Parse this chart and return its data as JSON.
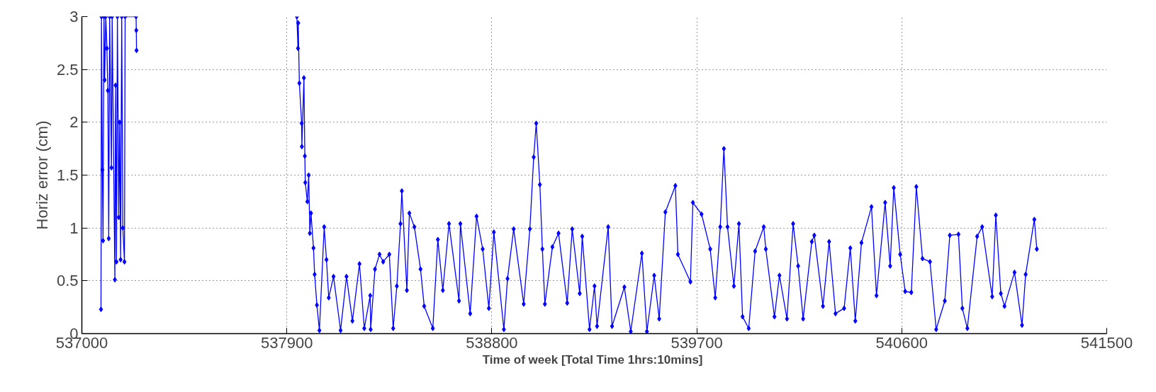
{
  "chart_data": {
    "type": "line",
    "xlabel": "Time of week  [Total Time 1hrs:10mins]",
    "ylabel": "Horiz error (cm)",
    "xlim": [
      537000,
      541500
    ],
    "xticks": [
      537000,
      537900,
      538800,
      539700,
      540600,
      541500
    ],
    "ylim": [
      0,
      3
    ],
    "yticks": [
      0,
      0.5,
      1,
      1.5,
      2,
      2.5,
      3
    ],
    "grid": true,
    "marker": "diamond",
    "line_style": "solid",
    "series": [
      {
        "color": "#0000ff",
        "x": [
          537084,
          537086,
          537090,
          537093,
          537097,
          537100,
          537105,
          537110,
          537114,
          537118,
          537122,
          537130,
          537133,
          537145,
          537148,
          537152,
          537156,
          537162,
          537166,
          537170,
          537175,
          537180,
          537187,
          537190,
          537238,
          537239,
          537240,
          537600,
          537944,
          537949,
          537950,
          537955,
          537965,
          537966,
          537975,
          537979,
          537981,
          537990,
          537996,
          538001,
          538006,
          538017,
          538022,
          538032,
          538043,
          538064,
          538074,
          538084,
          538105,
          538136,
          538162,
          538188,
          538219,
          538240,
          538266,
          538268,
          538287,
          538307,
          538323,
          538350,
          538367,
          538383,
          538399,
          538405,
          538427,
          538438,
          538460,
          538487,
          538503,
          538541,
          538563,
          538585,
          538612,
          538656,
          538662,
          538705,
          538733,
          538760,
          538787,
          538809,
          538853,
          538869,
          538896,
          538940,
          538967,
          538984,
          538995,
          539011,
          539022,
          539033,
          539066,
          539093,
          539131,
          539153,
          539186,
          539197,
          539229,
          539251,
          539262,
          539311,
          539328,
          539382,
          539410,
          539459,
          539481,
          539513,
          539535,
          539562,
          539606,
          539617,
          539672,
          539683,
          539721,
          539759,
          539781,
          539803,
          539819,
          539835,
          539863,
          539885,
          539901,
          539928,
          539956,
          539994,
          540003,
          540041,
          540063,
          540096,
          540123,
          540145,
          540167,
          540205,
          540216,
          540254,
          540281,
          540309,
          540347,
          540374,
          540396,
          540423,
          540467,
          540489,
          540527,
          540549,
          540565,
          540593,
          540615,
          540642,
          540664,
          540691,
          540724,
          540751,
          540789,
          540811,
          540849,
          540866,
          540888,
          540931,
          540953,
          540997,
          541013,
          541035,
          541051,
          541095,
          541128,
          541144,
          541182,
          541193
        ],
        "values": [
          0.23,
          3,
          1.55,
          0.88,
          3,
          2.4,
          3,
          2.7,
          2.3,
          0.9,
          3,
          1.57,
          3,
          0.51,
          2.35,
          0.68,
          3,
          1.1,
          2.0,
          0.7,
          3,
          1.0,
          0.68,
          3,
          3,
          2.87,
          2.68,
          null,
          3,
          2.7,
          2.94,
          2.37,
          1.99,
          1.77,
          2.42,
          1.68,
          1.43,
          1.25,
          1.5,
          0.95,
          1.14,
          0.81,
          0.56,
          0.27,
          0.03,
          1.01,
          0.7,
          0.34,
          0.54,
          0.03,
          0.54,
          0.12,
          0.66,
          0.05,
          0.36,
          0.04,
          0.61,
          0.75,
          0.68,
          0.75,
          0.05,
          0.45,
          1.04,
          1.35,
          0.41,
          1.14,
          1.01,
          0.61,
          0.26,
          0.05,
          0.89,
          0.41,
          1.04,
          0.31,
          1.04,
          0.19,
          1.11,
          0.8,
          0.24,
          0.96,
          0.04,
          0.52,
          0.99,
          0.28,
          0.99,
          1.67,
          1.99,
          1.41,
          0.8,
          0.28,
          0.82,
          0.95,
          0.29,
          0.99,
          0.38,
          0.92,
          0.04,
          0.45,
          0.07,
          1.01,
          0.07,
          0.44,
          0.02,
          0.76,
          0.02,
          0.55,
          0.14,
          1.15,
          1.4,
          0.75,
          0.49,
          1.24,
          1.13,
          0.8,
          0.34,
          1.01,
          1.75,
          1.01,
          0.45,
          1.04,
          0.16,
          0.05,
          0.78,
          1.01,
          0.8,
          0.16,
          0.55,
          0.14,
          1.04,
          0.64,
          0.14,
          0.87,
          0.93,
          0.26,
          0.87,
          0.19,
          0.24,
          0.81,
          0.12,
          0.86,
          1.2,
          0.36,
          1.24,
          0.64,
          1.38,
          0.75,
          0.4,
          0.39,
          1.39,
          0.71,
          0.68,
          0.04,
          0.31,
          0.93,
          0.94,
          0.24,
          0.05,
          0.92,
          1.01,
          0.35,
          1.12,
          0.38,
          0.26,
          0.58,
          0.08,
          0.56,
          1.08,
          0.8
        ]
      }
    ]
  }
}
